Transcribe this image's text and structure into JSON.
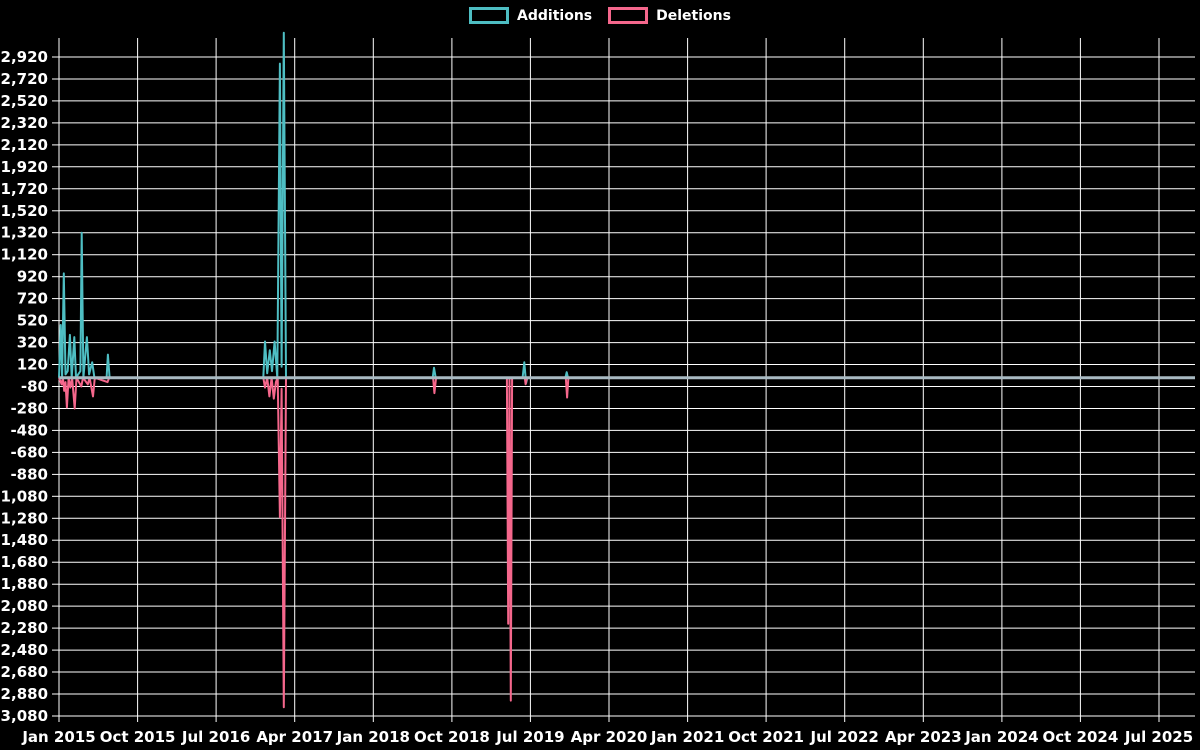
{
  "legend": {
    "items": [
      {
        "label": "Additions",
        "color": "#4ebec3"
      },
      {
        "label": "Deletions",
        "color": "#f5678c"
      }
    ]
  },
  "chart_data": {
    "type": "line",
    "title": "",
    "legend_position": "top",
    "grid": true,
    "background_color": "#000000",
    "grid_color": "#ffffff",
    "text_color": "#ffffff",
    "zero_line_color": "#a9bac3",
    "x_axis": {
      "tick_labels": [
        "Jan 2015",
        "Oct 2015",
        "Jul 2016",
        "Apr 2017",
        "Jan 2018",
        "Oct 2018",
        "Jul 2019",
        "Apr 2020",
        "Jan 2021",
        "Oct 2021",
        "Jul 2022",
        "Apr 2023",
        "Jan 2024",
        "Oct 2024",
        "Jul 2025"
      ],
      "months_between_ticks": 9,
      "total_months": 130
    },
    "y_axis": {
      "tick_min": -3080,
      "tick_max": 2920,
      "tick_step": 200,
      "data_min": -3080,
      "data_max": 3140,
      "tick_labels_top_to_bottom": [
        "2,920",
        "2,720",
        "2,520",
        "2,320",
        "2,120",
        "1,920",
        "1,720",
        "1,520",
        "1,320",
        "1,120",
        "920",
        "720",
        "520",
        "320",
        "120",
        "-80",
        "-280",
        "-480",
        "-680",
        "-880",
        "-1,080",
        "-1,280",
        "-1,480",
        "-1,680",
        "-1,880",
        "-2,080",
        "-2,280",
        "-2,480",
        "-2,680",
        "-2,880",
        "-3,080"
      ]
    },
    "series": [
      {
        "name": "Additions",
        "color": "#4ebec3",
        "points_month_value": [
          [
            0,
            0
          ],
          [
            0.2,
            480
          ],
          [
            0.35,
            0
          ],
          [
            0.55,
            950
          ],
          [
            0.75,
            30
          ],
          [
            1.0,
            60
          ],
          [
            1.25,
            390
          ],
          [
            1.45,
            0
          ],
          [
            1.75,
            370
          ],
          [
            1.95,
            0
          ],
          [
            2.45,
            60
          ],
          [
            2.6,
            1320
          ],
          [
            2.8,
            0
          ],
          [
            3.2,
            370
          ],
          [
            3.45,
            30
          ],
          [
            3.8,
            140
          ],
          [
            4.05,
            0
          ],
          [
            5.45,
            0
          ],
          [
            5.6,
            210
          ],
          [
            5.8,
            0
          ],
          [
            23.4,
            0
          ],
          [
            23.6,
            330
          ],
          [
            23.85,
            40
          ],
          [
            24.15,
            250
          ],
          [
            24.4,
            60
          ],
          [
            24.7,
            330
          ],
          [
            25.0,
            0
          ],
          [
            25.3,
            2860
          ],
          [
            25.5,
            100
          ],
          [
            25.75,
            3140
          ],
          [
            26.0,
            0
          ],
          [
            42.8,
            0
          ],
          [
            42.95,
            90
          ],
          [
            43.15,
            0
          ],
          [
            53.1,
            0
          ],
          [
            53.3,
            140
          ],
          [
            53.5,
            -50
          ],
          [
            53.65,
            0
          ],
          [
            58.0,
            0
          ],
          [
            58.15,
            50
          ],
          [
            58.3,
            0
          ],
          [
            130,
            0
          ]
        ]
      },
      {
        "name": "Deletions",
        "color": "#f5678c",
        "points_month_value": [
          [
            0,
            0
          ],
          [
            0.3,
            -60
          ],
          [
            0.45,
            0
          ],
          [
            0.6,
            -120
          ],
          [
            0.75,
            -40
          ],
          [
            0.9,
            -270
          ],
          [
            1.1,
            0
          ],
          [
            1.3,
            -90
          ],
          [
            1.5,
            0
          ],
          [
            1.8,
            -280
          ],
          [
            2.0,
            0
          ],
          [
            2.55,
            -80
          ],
          [
            2.75,
            0
          ],
          [
            3.3,
            -60
          ],
          [
            3.5,
            0
          ],
          [
            3.9,
            -170
          ],
          [
            4.1,
            0
          ],
          [
            5.55,
            -40
          ],
          [
            5.75,
            0
          ],
          [
            23.4,
            0
          ],
          [
            23.6,
            -90
          ],
          [
            23.85,
            0
          ],
          [
            24.1,
            -170
          ],
          [
            24.35,
            0
          ],
          [
            24.6,
            -190
          ],
          [
            24.85,
            -40
          ],
          [
            25.05,
            0
          ],
          [
            25.3,
            -1270
          ],
          [
            25.5,
            -100
          ],
          [
            25.75,
            -3000
          ],
          [
            26.0,
            0
          ],
          [
            42.85,
            0
          ],
          [
            43.0,
            -140
          ],
          [
            43.2,
            0
          ],
          [
            51.3,
            0
          ],
          [
            51.45,
            -2240
          ],
          [
            51.6,
            0
          ],
          [
            51.75,
            -2940
          ],
          [
            51.9,
            0
          ],
          [
            53.35,
            0
          ],
          [
            53.45,
            -60
          ],
          [
            53.6,
            0
          ],
          [
            58.05,
            0
          ],
          [
            58.2,
            -180
          ],
          [
            58.35,
            0
          ],
          [
            130,
            0
          ]
        ]
      }
    ]
  }
}
